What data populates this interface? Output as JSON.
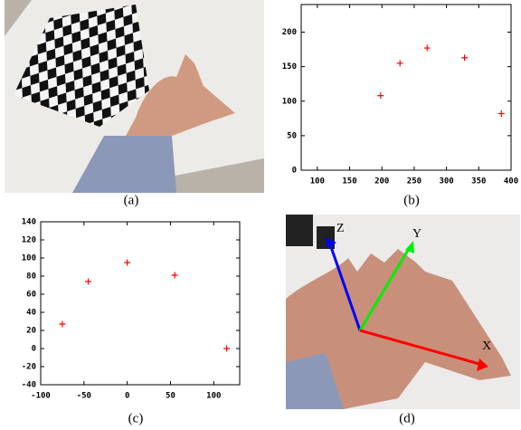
{
  "chart_data": [
    {
      "type": "scatter",
      "x": [
        198,
        228,
        270,
        328,
        385
      ],
      "values": [
        108,
        155,
        177,
        163,
        82
      ],
      "color": "#ff0000",
      "xlim": [
        75,
        400
      ],
      "xticks": [
        100,
        150,
        200,
        250,
        300,
        350,
        400
      ],
      "ylim": [
        0,
        240
      ],
      "yticks": [
        0,
        50,
        100,
        150,
        200
      ]
    },
    {
      "type": "scatter",
      "x": [
        -75,
        -45,
        0,
        55,
        115
      ],
      "values": [
        27,
        74,
        95,
        81,
        0
      ],
      "color": "#ff0000",
      "xlim": [
        -100,
        130
      ],
      "xticks": [
        -100,
        -50,
        0,
        50,
        100
      ],
      "ylim": [
        -40,
        140
      ],
      "yticks": [
        -40,
        -20,
        0,
        20,
        40,
        60,
        80,
        100,
        120,
        140
      ]
    }
  ],
  "captions": [
    "(a)",
    "(b)",
    "(c)",
    "(d)"
  ],
  "axis_names": [
    "Z",
    "Y",
    "X"
  ]
}
